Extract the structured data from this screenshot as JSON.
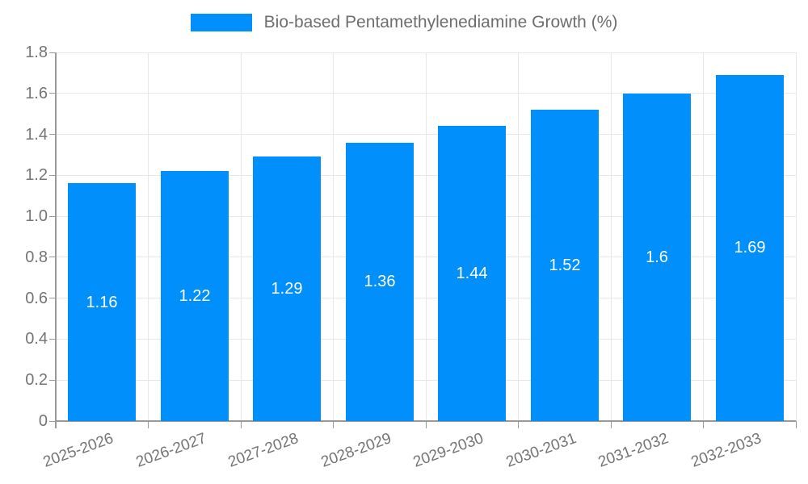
{
  "legend": {
    "label": "Bio-based Pentamethylenediamine Growth (%)"
  },
  "chart_data": {
    "type": "bar",
    "title": "Bio-based Pentamethylenediamine Growth (%)",
    "categories": [
      "2025-2026",
      "2026-2027",
      "2027-2028",
      "2028-2029",
      "2029-2030",
      "2030-2031",
      "2031-2032",
      "2032-2033"
    ],
    "values": [
      1.16,
      1.22,
      1.29,
      1.36,
      1.44,
      1.52,
      1.6,
      1.69
    ],
    "value_labels": [
      "1.16",
      "1.22",
      "1.29",
      "1.36",
      "1.44",
      "1.52",
      "1.6",
      "1.69"
    ],
    "xlabel": "",
    "ylabel": "",
    "ylim": [
      0,
      1.8
    ],
    "y_ticks": [
      "0",
      "0.2",
      "0.4",
      "0.6",
      "0.8",
      "1.0",
      "1.2",
      "1.4",
      "1.6",
      "1.8"
    ],
    "grid": true,
    "legend_position": "top",
    "x_label_rotation_deg": -20
  },
  "style": {
    "bar_color": "#008FFB",
    "grid_color": "#e7e7e7",
    "axis_color": "#999999",
    "tick_text_color": "#757575",
    "legend_text_color": "#6e6e6e",
    "bar_label_color": "#ffffff",
    "background": "#ffffff"
  }
}
